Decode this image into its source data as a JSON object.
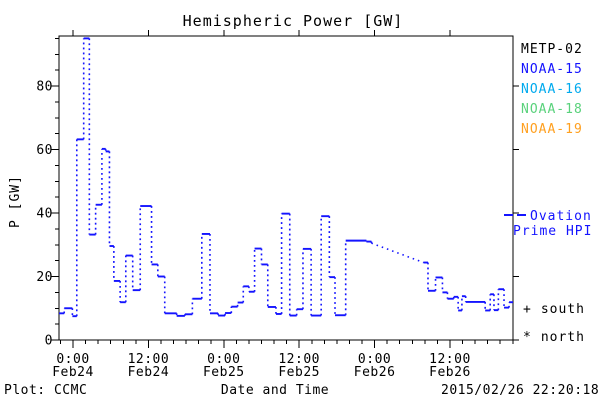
{
  "title": "Hemispheric Power [GW]",
  "y_axis_label": "P [GW]",
  "x_axis_label": "Date and Time",
  "footer": {
    "plot_credit": "Plot: CCMC",
    "timestamp": "2015/02/26 22:20:18"
  },
  "legend": {
    "satellites": [
      {
        "label": "METP-02",
        "color": "#000000"
      },
      {
        "label": "NOAA-15",
        "color": "#1414ff"
      },
      {
        "label": "NOAA-16",
        "color": "#00aaee"
      },
      {
        "label": "NOAA-18",
        "color": "#5ad27c"
      },
      {
        "label": "NOAA-19",
        "color": "#ffa020"
      }
    ],
    "model": {
      "line1": "Ovation",
      "line2": "Prime HPI",
      "color": "#1414ff"
    },
    "hemisphere_markers": [
      {
        "symbol": "+",
        "label": "south"
      },
      {
        "symbol": "*",
        "label": "north"
      }
    ]
  },
  "chart_data": {
    "type": "line",
    "subtype": "stepped, solid level dashes with dotted vertical connectors",
    "title": "Hemispheric Power [GW]",
    "xlabel": "Date and Time",
    "ylabel": "P [GW]",
    "x_unit": "hours since 2015-02-24 00:00 UT",
    "xlim": [
      -2.23,
      70.03
    ],
    "ylim": [
      0,
      95.75
    ],
    "grid": false,
    "x_minor_step_hours": 2,
    "y_minor_step": 5,
    "y_major_ticks": [
      0,
      20,
      40,
      60,
      80
    ],
    "x_major_ticks": [
      {
        "t": 0,
        "time": "0:00",
        "date": "Feb24"
      },
      {
        "t": 12,
        "time": "12:00",
        "date": "Feb24"
      },
      {
        "t": 24,
        "time": "0:00",
        "date": "Feb25"
      },
      {
        "t": 36,
        "time": "12:00",
        "date": "Feb25"
      },
      {
        "t": 48,
        "time": "0:00",
        "date": "Feb26"
      },
      {
        "t": 60,
        "time": "12:00",
        "date": "Feb26"
      }
    ],
    "series": [
      {
        "name": "Ovation Prime HPI",
        "color": "#1414ff",
        "steps_t_hours_value_gw": [
          [
            -2.23,
            8.4
          ],
          [
            -1.4,
            10.0
          ],
          [
            -0.1,
            7.5
          ],
          [
            0.6,
            63.2
          ],
          [
            1.7,
            95.0
          ],
          [
            2.6,
            33.2
          ],
          [
            3.6,
            42.6
          ],
          [
            4.6,
            60.2
          ],
          [
            5.2,
            59.4
          ],
          [
            5.8,
            29.6
          ],
          [
            6.5,
            18.6
          ],
          [
            7.5,
            11.9
          ],
          [
            8.4,
            26.6
          ],
          [
            9.5,
            15.7
          ],
          [
            10.7,
            42.2
          ],
          [
            12.5,
            23.8
          ],
          [
            13.5,
            20.0
          ],
          [
            14.6,
            8.4
          ],
          [
            16.5,
            7.6
          ],
          [
            17.8,
            8.1
          ],
          [
            19.0,
            13.0
          ],
          [
            20.5,
            33.4
          ],
          [
            21.8,
            8.4
          ],
          [
            23.1,
            7.7
          ],
          [
            24.2,
            8.5
          ],
          [
            25.2,
            10.5
          ],
          [
            26.2,
            11.8
          ],
          [
            27.1,
            16.9
          ],
          [
            28.0,
            15.2
          ],
          [
            28.9,
            28.8
          ],
          [
            30.0,
            23.8
          ],
          [
            31.0,
            10.4
          ],
          [
            32.3,
            8.2
          ],
          [
            33.2,
            39.8
          ],
          [
            34.5,
            7.7
          ],
          [
            35.6,
            9.7
          ],
          [
            36.6,
            28.7
          ],
          [
            37.9,
            7.7
          ],
          [
            39.5,
            39.0
          ],
          [
            40.8,
            19.8
          ],
          [
            41.7,
            7.8
          ],
          [
            43.4,
            31.3
          ],
          [
            46.7,
            31.0
          ],
          [
            47.5,
            30.5,
            "diag"
          ],
          [
            55.8,
            24.4
          ],
          [
            56.5,
            15.5
          ],
          [
            57.7,
            19.7
          ],
          [
            58.8,
            15.0
          ],
          [
            59.6,
            13.0
          ],
          [
            60.6,
            13.6
          ],
          [
            61.3,
            9.3
          ],
          [
            61.9,
            13.8
          ],
          [
            62.5,
            12.0
          ],
          [
            65.6,
            9.3
          ],
          [
            66.4,
            14.4
          ],
          [
            67.0,
            9.4
          ],
          [
            67.7,
            16.0
          ],
          [
            68.6,
            10.2
          ],
          [
            69.4,
            11.9
          ]
        ]
      }
    ]
  }
}
